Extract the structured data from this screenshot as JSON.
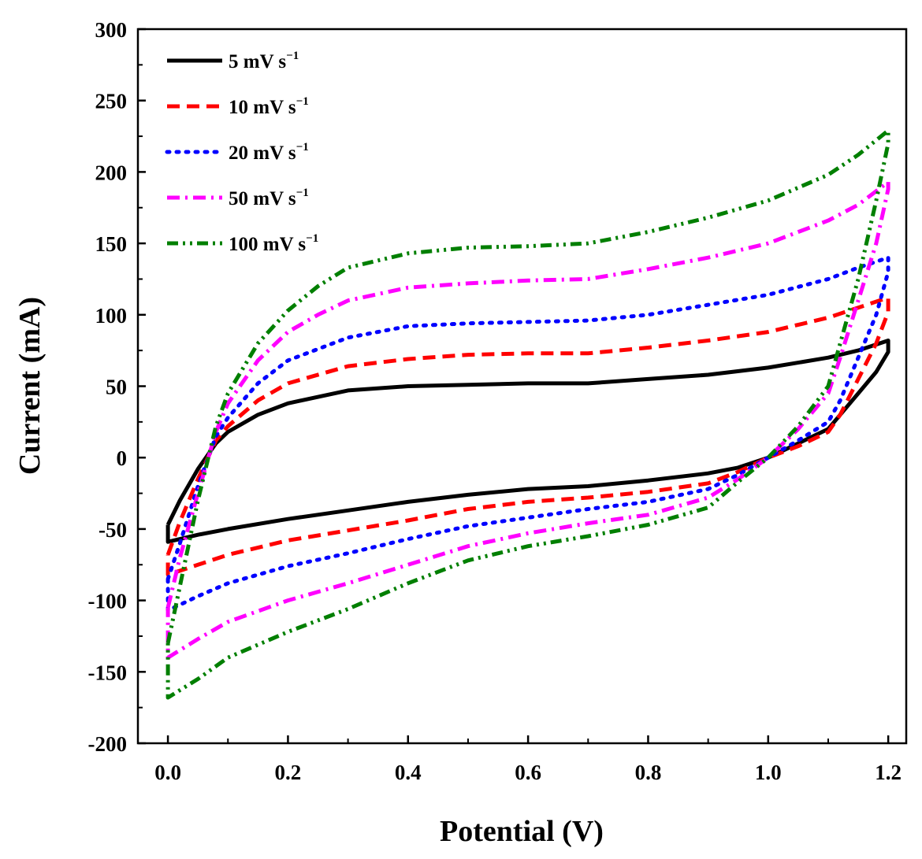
{
  "chart_data": {
    "type": "line",
    "title": "",
    "xlabel": "Potential (V)",
    "ylabel": "Current (mA)",
    "xlim": [
      -0.05,
      1.23
    ],
    "ylim": [
      -200,
      300
    ],
    "xticks": [
      0.0,
      0.2,
      0.4,
      0.6,
      0.8,
      1.0,
      1.2
    ],
    "xtick_labels": [
      "0.0",
      "0.2",
      "0.4",
      "0.6",
      "0.8",
      "1.0",
      "1.2"
    ],
    "yticks": [
      -200,
      -150,
      -100,
      -50,
      0,
      50,
      100,
      150,
      200,
      250,
      300
    ],
    "ytick_labels": [
      "-200",
      "-150",
      "-100",
      "-50",
      "0",
      "50",
      "100",
      "150",
      "200",
      "250",
      "300"
    ],
    "grid": false,
    "legend_position": "top-left",
    "series": [
      {
        "name": "5 mV s",
        "unit_sup": "−1",
        "color": "#000000",
        "style": "solid",
        "forward": [
          [
            0.0,
            -47
          ],
          [
            0.02,
            -30
          ],
          [
            0.05,
            -8
          ],
          [
            0.08,
            10
          ],
          [
            0.1,
            18
          ],
          [
            0.15,
            30
          ],
          [
            0.2,
            38
          ],
          [
            0.3,
            47
          ],
          [
            0.4,
            50
          ],
          [
            0.5,
            51
          ],
          [
            0.6,
            52
          ],
          [
            0.7,
            52
          ],
          [
            0.8,
            55
          ],
          [
            0.9,
            58
          ],
          [
            1.0,
            63
          ],
          [
            1.1,
            70
          ],
          [
            1.15,
            75
          ],
          [
            1.2,
            82
          ]
        ],
        "reverse": [
          [
            1.2,
            74
          ],
          [
            1.18,
            60
          ],
          [
            1.15,
            45
          ],
          [
            1.12,
            30
          ],
          [
            1.1,
            20
          ],
          [
            1.05,
            10
          ],
          [
            1.0,
            0
          ],
          [
            0.95,
            -7
          ],
          [
            0.9,
            -11
          ],
          [
            0.8,
            -16
          ],
          [
            0.7,
            -20
          ],
          [
            0.6,
            -22
          ],
          [
            0.5,
            -26
          ],
          [
            0.4,
            -31
          ],
          [
            0.3,
            -37
          ],
          [
            0.2,
            -43
          ],
          [
            0.1,
            -50
          ],
          [
            0.05,
            -54
          ],
          [
            0.0,
            -59
          ]
        ]
      },
      {
        "name": "10 mV s",
        "unit_sup": "−1",
        "color": "#ff0000",
        "style": "dashed",
        "forward": [
          [
            0.0,
            -68
          ],
          [
            0.02,
            -45
          ],
          [
            0.05,
            -15
          ],
          [
            0.08,
            12
          ],
          [
            0.1,
            22
          ],
          [
            0.15,
            40
          ],
          [
            0.2,
            52
          ],
          [
            0.3,
            64
          ],
          [
            0.4,
            69
          ],
          [
            0.5,
            72
          ],
          [
            0.6,
            73
          ],
          [
            0.7,
            73
          ],
          [
            0.8,
            77
          ],
          [
            0.9,
            82
          ],
          [
            1.0,
            88
          ],
          [
            1.1,
            98
          ],
          [
            1.15,
            105
          ],
          [
            1.2,
            112
          ]
        ],
        "reverse": [
          [
            1.2,
            102
          ],
          [
            1.18,
            80
          ],
          [
            1.15,
            55
          ],
          [
            1.12,
            30
          ],
          [
            1.1,
            18
          ],
          [
            1.05,
            8
          ],
          [
            1.0,
            0
          ],
          [
            0.95,
            -10
          ],
          [
            0.9,
            -18
          ],
          [
            0.8,
            -24
          ],
          [
            0.7,
            -28
          ],
          [
            0.6,
            -31
          ],
          [
            0.5,
            -36
          ],
          [
            0.4,
            -44
          ],
          [
            0.3,
            -51
          ],
          [
            0.2,
            -58
          ],
          [
            0.1,
            -68
          ],
          [
            0.05,
            -75
          ],
          [
            0.0,
            -82
          ]
        ]
      },
      {
        "name": "20 mV s",
        "unit_sup": "−1",
        "color": "#0000ff",
        "style": "dotted",
        "forward": [
          [
            0.0,
            -85
          ],
          [
            0.02,
            -60
          ],
          [
            0.05,
            -20
          ],
          [
            0.08,
            15
          ],
          [
            0.1,
            28
          ],
          [
            0.15,
            52
          ],
          [
            0.2,
            68
          ],
          [
            0.3,
            84
          ],
          [
            0.4,
            92
          ],
          [
            0.5,
            94
          ],
          [
            0.6,
            95
          ],
          [
            0.7,
            96
          ],
          [
            0.8,
            100
          ],
          [
            0.9,
            107
          ],
          [
            1.0,
            114
          ],
          [
            1.1,
            125
          ],
          [
            1.15,
            133
          ],
          [
            1.2,
            140
          ]
        ],
        "reverse": [
          [
            1.2,
            130
          ],
          [
            1.18,
            100
          ],
          [
            1.15,
            70
          ],
          [
            1.12,
            40
          ],
          [
            1.1,
            25
          ],
          [
            1.05,
            12
          ],
          [
            1.0,
            0
          ],
          [
            0.95,
            -12
          ],
          [
            0.9,
            -22
          ],
          [
            0.8,
            -31
          ],
          [
            0.7,
            -36
          ],
          [
            0.6,
            -42
          ],
          [
            0.5,
            -48
          ],
          [
            0.4,
            -57
          ],
          [
            0.3,
            -67
          ],
          [
            0.2,
            -76
          ],
          [
            0.1,
            -88
          ],
          [
            0.05,
            -97
          ],
          [
            0.0,
            -107
          ]
        ]
      },
      {
        "name": "50 mV s",
        "unit_sup": "−1",
        "color": "#ff00ff",
        "style": "dashdot",
        "forward": [
          [
            0.0,
            -105
          ],
          [
            0.02,
            -70
          ],
          [
            0.05,
            -25
          ],
          [
            0.08,
            18
          ],
          [
            0.1,
            38
          ],
          [
            0.15,
            68
          ],
          [
            0.2,
            88
          ],
          [
            0.25,
            100
          ],
          [
            0.3,
            110
          ],
          [
            0.4,
            119
          ],
          [
            0.5,
            122
          ],
          [
            0.6,
            124
          ],
          [
            0.7,
            125
          ],
          [
            0.8,
            132
          ],
          [
            0.9,
            140
          ],
          [
            1.0,
            150
          ],
          [
            1.1,
            166
          ],
          [
            1.15,
            177
          ],
          [
            1.2,
            193
          ]
        ],
        "reverse": [
          [
            1.2,
            188
          ],
          [
            1.18,
            150
          ],
          [
            1.15,
            110
          ],
          [
            1.12,
            70
          ],
          [
            1.1,
            45
          ],
          [
            1.05,
            20
          ],
          [
            1.0,
            0
          ],
          [
            0.95,
            -15
          ],
          [
            0.9,
            -28
          ],
          [
            0.8,
            -40
          ],
          [
            0.7,
            -46
          ],
          [
            0.6,
            -53
          ],
          [
            0.5,
            -62
          ],
          [
            0.4,
            -75
          ],
          [
            0.3,
            -88
          ],
          [
            0.2,
            -100
          ],
          [
            0.1,
            -115
          ],
          [
            0.05,
            -127
          ],
          [
            0.0,
            -140
          ]
        ]
      },
      {
        "name": "100 mV s",
        "unit_sup": "−1",
        "color": "#007f00",
        "style": "dashdotdot",
        "forward": [
          [
            0.0,
            -130
          ],
          [
            0.02,
            -90
          ],
          [
            0.05,
            -30
          ],
          [
            0.08,
            22
          ],
          [
            0.1,
            45
          ],
          [
            0.15,
            80
          ],
          [
            0.2,
            103
          ],
          [
            0.25,
            120
          ],
          [
            0.3,
            133
          ],
          [
            0.4,
            143
          ],
          [
            0.5,
            147
          ],
          [
            0.6,
            148
          ],
          [
            0.7,
            150
          ],
          [
            0.8,
            158
          ],
          [
            0.9,
            168
          ],
          [
            1.0,
            180
          ],
          [
            1.1,
            198
          ],
          [
            1.15,
            212
          ],
          [
            1.2,
            229
          ]
        ],
        "reverse": [
          [
            1.2,
            220
          ],
          [
            1.18,
            180
          ],
          [
            1.15,
            125
          ],
          [
            1.12,
            80
          ],
          [
            1.1,
            50
          ],
          [
            1.05,
            22
          ],
          [
            1.0,
            0
          ],
          [
            0.95,
            -17
          ],
          [
            0.9,
            -35
          ],
          [
            0.8,
            -47
          ],
          [
            0.7,
            -55
          ],
          [
            0.6,
            -62
          ],
          [
            0.5,
            -72
          ],
          [
            0.4,
            -88
          ],
          [
            0.3,
            -106
          ],
          [
            0.2,
            -122
          ],
          [
            0.1,
            -140
          ],
          [
            0.05,
            -155
          ],
          [
            0.0,
            -168
          ]
        ]
      }
    ]
  }
}
